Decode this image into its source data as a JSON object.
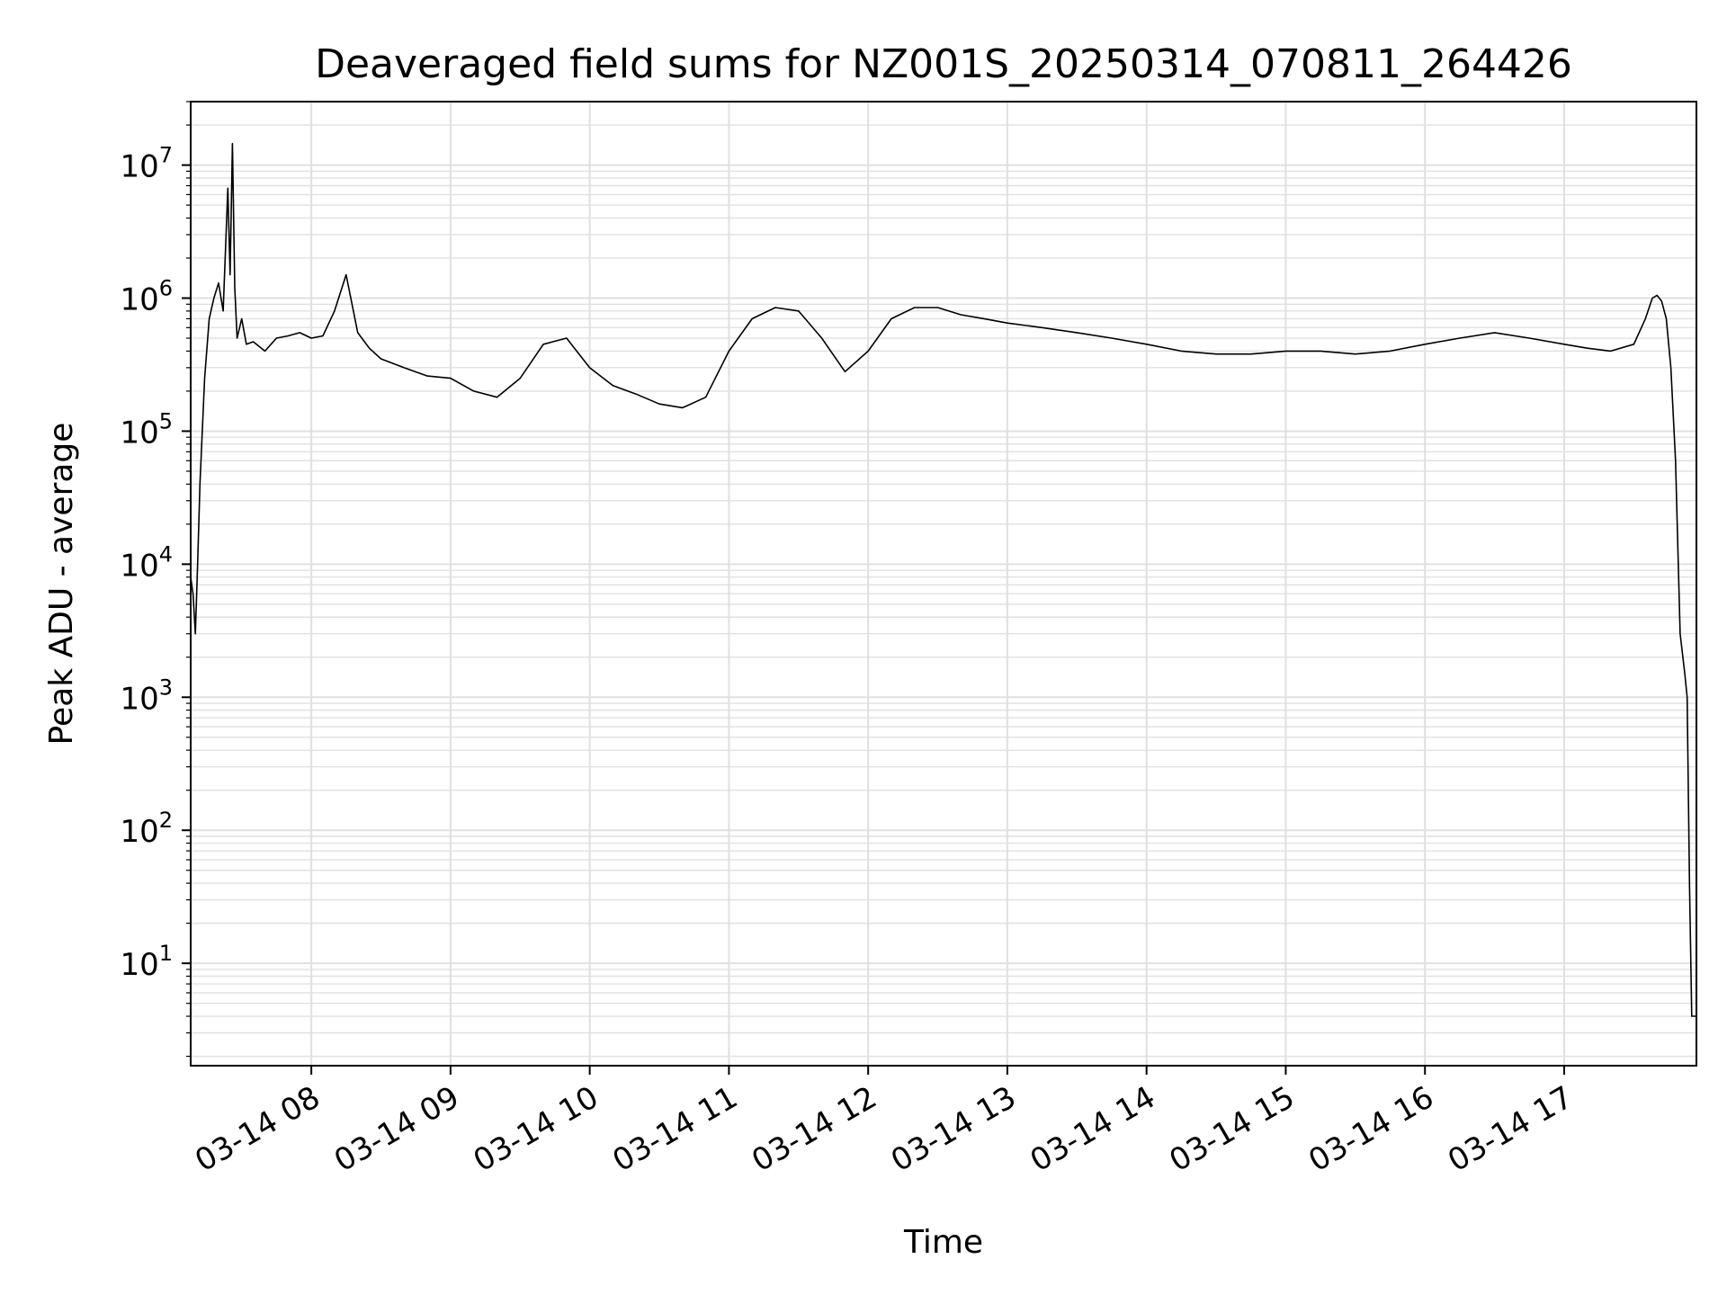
{
  "chart_data": {
    "type": "line",
    "title": "Deaveraged field sums for NZ001S_20250314_070811_264426",
    "xlabel": "Time",
    "ylabel": "Peak ADU - average",
    "yscale": "log",
    "ylim": [
      1.7,
      30000000
    ],
    "xlim": [
      "2025-03-14 07:08",
      "2025-03-14 17:57"
    ],
    "grid": true,
    "legend": "none",
    "line_color": "#000000",
    "grid_color": "#e0e0e0",
    "x_ticks": [
      {
        "t": "2025-03-14 08:00",
        "label": "03-14 08"
      },
      {
        "t": "2025-03-14 09:00",
        "label": "03-14 09"
      },
      {
        "t": "2025-03-14 10:00",
        "label": "03-14 10"
      },
      {
        "t": "2025-03-14 11:00",
        "label": "03-14 11"
      },
      {
        "t": "2025-03-14 12:00",
        "label": "03-14 12"
      },
      {
        "t": "2025-03-14 13:00",
        "label": "03-14 13"
      },
      {
        "t": "2025-03-14 14:00",
        "label": "03-14 14"
      },
      {
        "t": "2025-03-14 15:00",
        "label": "03-14 15"
      },
      {
        "t": "2025-03-14 16:00",
        "label": "03-14 16"
      },
      {
        "t": "2025-03-14 17:00",
        "label": "03-14 17"
      }
    ],
    "y_ticks": [
      {
        "value": 10,
        "base": "10",
        "exp": "1"
      },
      {
        "value": 100,
        "base": "10",
        "exp": "2"
      },
      {
        "value": 1000,
        "base": "10",
        "exp": "3"
      },
      {
        "value": 10000,
        "base": "10",
        "exp": "4"
      },
      {
        "value": 100000,
        "base": "10",
        "exp": "5"
      },
      {
        "value": 1000000,
        "base": "10",
        "exp": "6"
      },
      {
        "value": 10000000,
        "base": "10",
        "exp": "7"
      }
    ],
    "series": [
      {
        "x": [
          "2025-03-14 07:08",
          "2025-03-14 07:09",
          "2025-03-14 07:10",
          "2025-03-14 07:11",
          "2025-03-14 07:12",
          "2025-03-14 07:14",
          "2025-03-14 07:16",
          "2025-03-14 07:18",
          "2025-03-14 07:20",
          "2025-03-14 07:22",
          "2025-03-14 07:24",
          "2025-03-14 07:25",
          "2025-03-14 07:26",
          "2025-03-14 07:27",
          "2025-03-14 07:28",
          "2025-03-14 07:30",
          "2025-03-14 07:32",
          "2025-03-14 07:35",
          "2025-03-14 07:40",
          "2025-03-14 07:45",
          "2025-03-14 07:50",
          "2025-03-14 07:55",
          "2025-03-14 08:00",
          "2025-03-14 08:05",
          "2025-03-14 08:10",
          "2025-03-14 08:15",
          "2025-03-14 08:20",
          "2025-03-14 08:25",
          "2025-03-14 08:30",
          "2025-03-14 08:40",
          "2025-03-14 08:50",
          "2025-03-14 09:00",
          "2025-03-14 09:10",
          "2025-03-14 09:20",
          "2025-03-14 09:30",
          "2025-03-14 09:40",
          "2025-03-14 09:50",
          "2025-03-14 10:00",
          "2025-03-14 10:10",
          "2025-03-14 10:20",
          "2025-03-14 10:30",
          "2025-03-14 10:40",
          "2025-03-14 10:50",
          "2025-03-14 11:00",
          "2025-03-14 11:10",
          "2025-03-14 11:20",
          "2025-03-14 11:30",
          "2025-03-14 11:40",
          "2025-03-14 11:50",
          "2025-03-14 12:00",
          "2025-03-14 12:10",
          "2025-03-14 12:20",
          "2025-03-14 12:30",
          "2025-03-14 12:40",
          "2025-03-14 12:50",
          "2025-03-14 13:00",
          "2025-03-14 13:15",
          "2025-03-14 13:30",
          "2025-03-14 13:45",
          "2025-03-14 14:00",
          "2025-03-14 14:15",
          "2025-03-14 14:30",
          "2025-03-14 14:45",
          "2025-03-14 15:00",
          "2025-03-14 15:15",
          "2025-03-14 15:30",
          "2025-03-14 15:45",
          "2025-03-14 16:00",
          "2025-03-14 16:15",
          "2025-03-14 16:30",
          "2025-03-14 16:45",
          "2025-03-14 17:00",
          "2025-03-14 17:10",
          "2025-03-14 17:20",
          "2025-03-14 17:30",
          "2025-03-14 17:35",
          "2025-03-14 17:38",
          "2025-03-14 17:40",
          "2025-03-14 17:42",
          "2025-03-14 17:44",
          "2025-03-14 17:46",
          "2025-03-14 17:48",
          "2025-03-14 17:50",
          "2025-03-14 17:52",
          "2025-03-14 17:53",
          "2025-03-14 17:54",
          "2025-03-14 17:55",
          "2025-03-14 17:57"
        ],
        "y": [
          8000,
          6000,
          3000,
          10000,
          40000,
          250000,
          700000,
          1000000,
          1300000,
          800000,
          6700000,
          1500000,
          14500000,
          1200000,
          500000,
          700000,
          450000,
          470000,
          400000,
          500000,
          520000,
          550000,
          500000,
          520000,
          800000,
          1500000,
          550000,
          420000,
          350000,
          300000,
          260000,
          250000,
          200000,
          180000,
          250000,
          450000,
          500000,
          300000,
          220000,
          190000,
          160000,
          150000,
          180000,
          400000,
          700000,
          850000,
          800000,
          500000,
          280000,
          400000,
          700000,
          850000,
          850000,
          750000,
          700000,
          650000,
          600000,
          550000,
          500000,
          450000,
          400000,
          380000,
          380000,
          400000,
          400000,
          380000,
          400000,
          450000,
          500000,
          550000,
          500000,
          450000,
          420000,
          400000,
          450000,
          700000,
          1000000,
          1050000,
          950000,
          700000,
          300000,
          60000,
          3000,
          1500,
          1000,
          40,
          4,
          4
        ]
      }
    ]
  }
}
